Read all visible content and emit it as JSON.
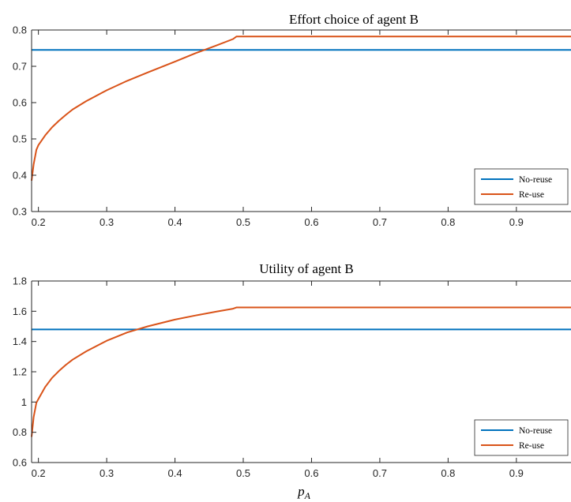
{
  "chart_data": [
    {
      "type": "line",
      "title": "Effort choice of agent B",
      "xlabel": "",
      "ylabel": "",
      "xlim": [
        0.19,
        0.98
      ],
      "ylim": [
        0.3,
        0.8
      ],
      "xticks": [
        0.2,
        0.3,
        0.4,
        0.5,
        0.6,
        0.7,
        0.8,
        0.9
      ],
      "yticks": [
        0.3,
        0.4,
        0.5,
        0.6,
        0.7,
        0.8
      ],
      "legend_position": "bottom-right",
      "series": [
        {
          "name": "No-reuse",
          "color": "#0072BD",
          "x": [
            0.19,
            0.98
          ],
          "y": [
            0.745,
            0.745
          ]
        },
        {
          "name": "Re-use",
          "color": "#D95319",
          "x": [
            0.19,
            0.193,
            0.197,
            0.2,
            0.21,
            0.22,
            0.23,
            0.24,
            0.25,
            0.27,
            0.3,
            0.33,
            0.36,
            0.4,
            0.43,
            0.46,
            0.485,
            0.49,
            0.5,
            0.6,
            0.7,
            0.8,
            0.9,
            0.98
          ],
          "y": [
            0.385,
            0.43,
            0.47,
            0.483,
            0.51,
            0.532,
            0.55,
            0.566,
            0.581,
            0.604,
            0.634,
            0.66,
            0.683,
            0.713,
            0.736,
            0.757,
            0.775,
            0.782,
            0.782,
            0.782,
            0.782,
            0.782,
            0.782,
            0.782
          ]
        }
      ]
    },
    {
      "type": "line",
      "title": "Utility of agent B",
      "xlabel": "p_A",
      "ylabel": "",
      "xlim": [
        0.19,
        0.98
      ],
      "ylim": [
        0.6,
        1.8
      ],
      "xticks": [
        0.2,
        0.3,
        0.4,
        0.5,
        0.6,
        0.7,
        0.8,
        0.9
      ],
      "yticks": [
        0.6,
        0.8,
        1.0,
        1.2,
        1.4,
        1.6,
        1.8
      ],
      "legend_position": "bottom-right",
      "series": [
        {
          "name": "No-reuse",
          "color": "#0072BD",
          "x": [
            0.19,
            0.98
          ],
          "y": [
            1.48,
            1.48
          ]
        },
        {
          "name": "Re-use",
          "color": "#D95319",
          "x": [
            0.19,
            0.193,
            0.197,
            0.2,
            0.21,
            0.22,
            0.23,
            0.24,
            0.25,
            0.27,
            0.3,
            0.33,
            0.36,
            0.4,
            0.43,
            0.46,
            0.485,
            0.49,
            0.5,
            0.6,
            0.7,
            0.8,
            0.9,
            0.98
          ],
          "y": [
            0.77,
            0.9,
            0.995,
            1.02,
            1.1,
            1.16,
            1.205,
            1.245,
            1.28,
            1.335,
            1.405,
            1.46,
            1.5,
            1.545,
            1.572,
            1.597,
            1.617,
            1.625,
            1.625,
            1.625,
            1.625,
            1.625,
            1.625,
            1.625
          ]
        }
      ]
    }
  ],
  "tick_labels": {
    "top_x": [
      "0.2",
      "0.3",
      "0.4",
      "0.5",
      "0.6",
      "0.7",
      "0.8",
      "0.9"
    ],
    "top_y": [
      "0.3",
      "0.4",
      "0.5",
      "0.6",
      "0.7",
      "0.8"
    ],
    "bottom_x": [
      "0.2",
      "0.3",
      "0.4",
      "0.5",
      "0.6",
      "0.7",
      "0.8",
      "0.9"
    ],
    "bottom_y": [
      "0.6",
      "0.8",
      "1",
      "1.2",
      "1.4",
      "1.6",
      "1.8"
    ]
  },
  "xlabel_display": {
    "base": "p",
    "sub": "A"
  }
}
